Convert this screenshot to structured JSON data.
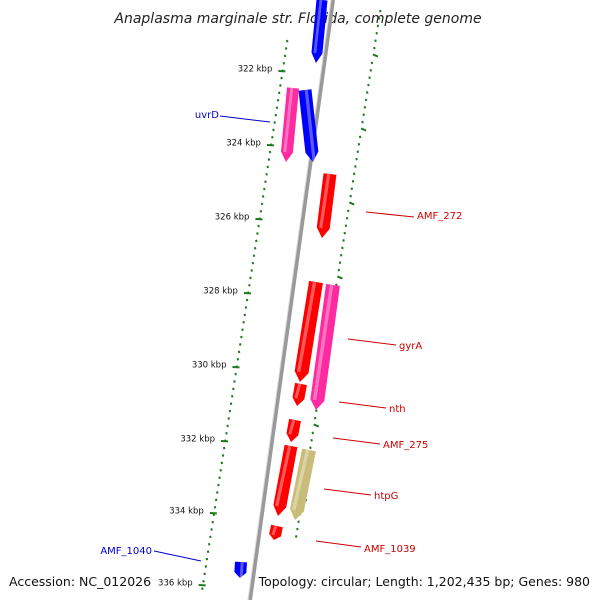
{
  "title": "Anaplasma marginale str. Florida, complete genome",
  "footer": {
    "accession": "Accession: NC_012026",
    "summary": "Topology: circular; Length: 1,202,435 bp; Genes: 980"
  },
  "colors": {
    "forward_strand": "#0000ff",
    "reverse_strand": "#ff0000",
    "magenta": "#ff2aa0",
    "khaki": "#c8bc78",
    "ruler": "#1f7a1f",
    "backbone": "#888888"
  },
  "kbp_labels": [
    "322 kbp",
    "324 kbp",
    "326 kbp",
    "328 kbp",
    "330 kbp",
    "332 kbp",
    "334 kbp",
    "336 kbp"
  ],
  "gene_labels": [
    {
      "text": "uvrD",
      "color": "#0000cc"
    },
    {
      "text": "AMF_272",
      "color": "#cc0000"
    },
    {
      "text": "gyrA",
      "color": "#cc0000"
    },
    {
      "text": "nth",
      "color": "#cc0000"
    },
    {
      "text": "AMF_275",
      "color": "#cc0000"
    },
    {
      "text": "htpG",
      "color": "#cc0000"
    },
    {
      "text": "AMF_1039",
      "color": "#cc0000"
    },
    {
      "text": "AMF_1040",
      "color": "#0000cc"
    }
  ]
}
